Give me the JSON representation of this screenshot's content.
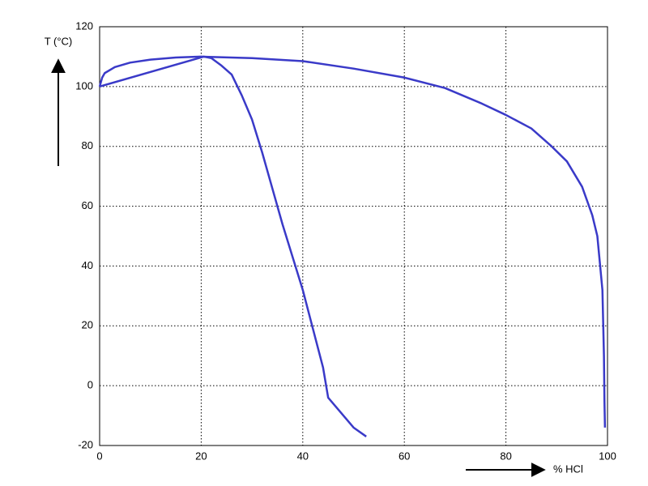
{
  "chart_data": {
    "type": "line",
    "ylabel": "T (°C)",
    "xlabel": "% HCl",
    "xlim": [
      0,
      100
    ],
    "xticks": [
      0,
      20,
      40,
      60,
      80,
      100
    ],
    "ylim": [
      -20,
      120
    ],
    "yticks": [
      -20,
      0,
      20,
      40,
      60,
      80,
      100,
      120
    ],
    "grid": true,
    "series": [
      {
        "color": "#3a3ac8",
        "x": [
          0,
          20.5,
          22,
          24,
          26,
          28,
          30,
          32,
          34,
          36,
          38,
          40,
          42,
          44,
          45,
          48,
          50,
          52.5
        ],
        "values": [
          100,
          110,
          109.5,
          107,
          104,
          97,
          89,
          78,
          66,
          54,
          43,
          32,
          19,
          6,
          -4,
          -10,
          -14,
          -17
        ]
      },
      {
        "color": "#3a3ac8",
        "x": [
          0,
          0.5,
          1,
          3,
          6,
          10,
          15,
          20,
          30,
          40,
          50,
          60,
          68,
          75,
          80,
          85,
          89,
          92,
          95,
          97,
          98,
          99,
          99.3,
          99.4,
          99.5
        ],
        "values": [
          100,
          103,
          104.5,
          106.5,
          108,
          109,
          109.7,
          110,
          109.5,
          108.5,
          106,
          103,
          99.5,
          94.5,
          90.5,
          86,
          80,
          75,
          66.5,
          57,
          50,
          32,
          10,
          -5,
          -14
        ]
      }
    ]
  }
}
